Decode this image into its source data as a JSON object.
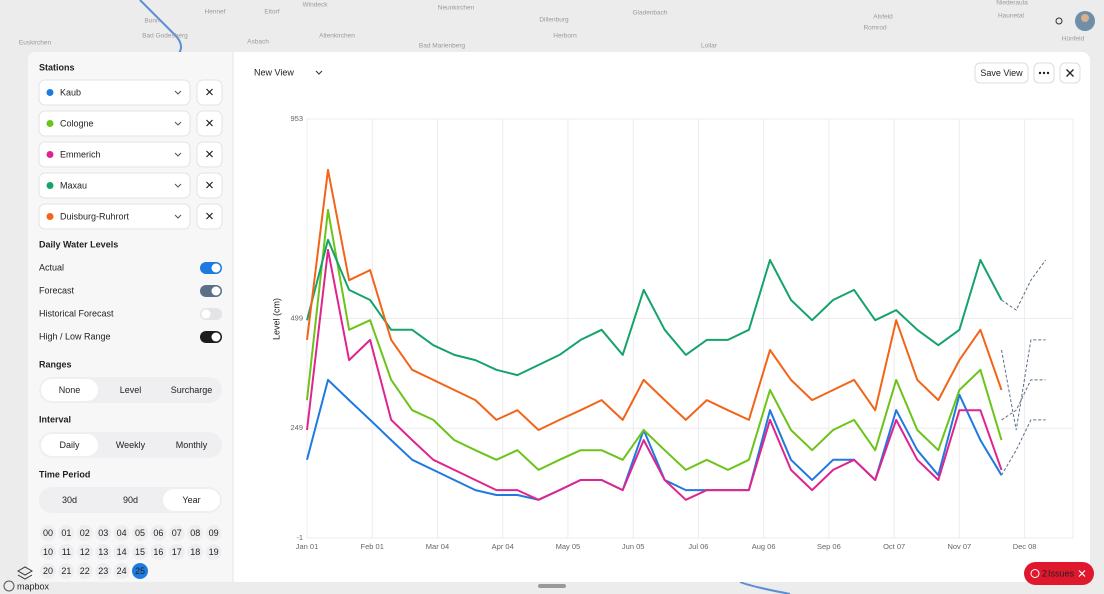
{
  "map_labels": [
    "Bonn",
    "Bad Godesberg",
    "Euskirchen",
    "Hennef",
    "Eitorf",
    "Windeck",
    "Asbach",
    "Altenkirchen",
    "Bad Marienberg",
    "Neunkirchen",
    "Dillenburg",
    "Herborn",
    "Gladenbach",
    "Lollar",
    "Alsfeld",
    "Romrod",
    "Haunetal",
    "Hünfeld",
    "Niederaula"
  ],
  "mapbox_logo": "mapbox",
  "header": {
    "view_title": "New View",
    "save_button": "Save View"
  },
  "issues_badge": {
    "count": 2,
    "label": "Issues"
  },
  "sidebar": {
    "stations_heading": "Stations",
    "levels_heading": "Daily Water Levels",
    "toggles": [
      {
        "label": "Actual",
        "on": true,
        "color": "#1f7ae0"
      },
      {
        "label": "Forecast",
        "on": true,
        "color": "#5b6f87"
      },
      {
        "label": "Historical Forecast",
        "on": false,
        "color": "#e4e4e7"
      },
      {
        "label": "High / Low Range",
        "on": true,
        "color": "#1c1c1e"
      }
    ],
    "ranges_heading": "Ranges",
    "ranges": {
      "options": [
        "None",
        "Level",
        "Surcharge"
      ],
      "selected": 0,
      "disabled": [
        1,
        2
      ]
    },
    "interval_heading": "Interval",
    "interval": {
      "options": [
        "Daily",
        "Weekly",
        "Monthly"
      ],
      "selected": 0,
      "disabled": []
    },
    "period_heading": "Time Period",
    "period": {
      "options": [
        "30d",
        "90d",
        "Year"
      ],
      "selected": 2,
      "disabled": []
    },
    "days": [
      "00",
      "01",
      "02",
      "03",
      "04",
      "05",
      "06",
      "07",
      "08",
      "09",
      "10",
      "11",
      "12",
      "13",
      "14",
      "15",
      "16",
      "17",
      "18",
      "19",
      "20",
      "21",
      "22",
      "23",
      "24",
      "25"
    ],
    "selected_day": 25
  },
  "chart_data": {
    "type": "line",
    "y_label": "Level (cm)",
    "x": [
      "Jan 01",
      "Jan 11",
      "Jan 21",
      "Jan 31",
      "Feb 10",
      "Feb 20",
      "Mar 02",
      "Mar 12",
      "Mar 22",
      "Apr 01",
      "Apr 11",
      "Apr 21",
      "May 01",
      "May 11",
      "May 21",
      "May 31",
      "Jun 10",
      "Jun 20",
      "Jun 30",
      "Jul 10",
      "Jul 20",
      "Jul 30",
      "Aug 09",
      "Aug 19",
      "Aug 29",
      "Sep 08",
      "Sep 18",
      "Sep 28",
      "Oct 08",
      "Oct 18",
      "Oct 28",
      "Nov 07",
      "Nov 17",
      "Nov 27"
    ],
    "forecast_x": [
      "Nov 27",
      "Dec 04",
      "Dec 11",
      "Dec 18"
    ],
    "xlim": [
      "Jan 01",
      "Dec 31"
    ],
    "xticks": [
      "Jan 01",
      "Feb 01",
      "Mar 04",
      "Apr 04",
      "May 05",
      "Jun 05",
      "Jul 06",
      "Aug 06",
      "Sep 06",
      "Oct 07",
      "Nov 07",
      "Dec 08"
    ],
    "ylim": [
      -1,
      953
    ],
    "yticks": [
      -1,
      249,
      499,
      953
    ],
    "grid": true,
    "series": [
      {
        "name": "Kaub",
        "color": "#1f7ae0",
        "values": [
          177,
          359,
          313,
          268,
          222,
          177,
          154,
          131,
          108,
          97,
          97,
          86,
          108,
          131,
          131,
          108,
          245,
          131,
          108,
          108,
          108,
          108,
          290,
          177,
          131,
          177,
          177,
          131,
          290,
          199,
          142,
          325,
          222,
          142
        ],
        "forecast": [
          142,
          199,
          268,
          268
        ]
      },
      {
        "name": "Cologne",
        "color": "#6cc31a",
        "values": [
          313,
          746,
          473,
          495,
          359,
          290,
          268,
          222,
          199,
          177,
          199,
          154,
          177,
          199,
          199,
          177,
          245,
          199,
          154,
          177,
          154,
          177,
          336,
          245,
          199,
          245,
          268,
          199,
          359,
          245,
          199,
          336,
          382,
          222
        ],
        "forecast": [
          268,
          290,
          359,
          359
        ]
      },
      {
        "name": "Emmerich",
        "color": "#e0248f",
        "values": [
          245,
          655,
          404,
          450,
          268,
          222,
          177,
          154,
          131,
          108,
          108,
          86,
          108,
          131,
          131,
          108,
          222,
          131,
          86,
          108,
          108,
          108,
          268,
          154,
          108,
          154,
          177,
          131,
          268,
          177,
          131,
          290,
          290,
          154
        ]
      },
      {
        "name": "Maxau",
        "color": "#16a36b",
        "values": [
          495,
          678,
          564,
          541,
          473,
          473,
          438,
          416,
          404,
          382,
          370,
          393,
          416,
          450,
          473,
          416,
          564,
          473,
          416,
          450,
          450,
          473,
          632,
          541,
          495,
          541,
          564,
          495,
          518,
          473,
          438,
          473,
          632,
          541
        ],
        "forecast": [
          541,
          518,
          586,
          632
        ]
      },
      {
        "name": "Duisburg-Ruhrort",
        "color": "#f26419",
        "values": [
          450,
          837,
          586,
          609,
          450,
          382,
          359,
          336,
          313,
          268,
          290,
          245,
          268,
          290,
          313,
          268,
          359,
          313,
          268,
          313,
          290,
          268,
          427,
          359,
          313,
          336,
          359,
          290,
          495,
          359,
          313,
          404,
          473,
          336
        ],
        "forecast": [
          427,
          245,
          450,
          450
        ]
      }
    ]
  }
}
